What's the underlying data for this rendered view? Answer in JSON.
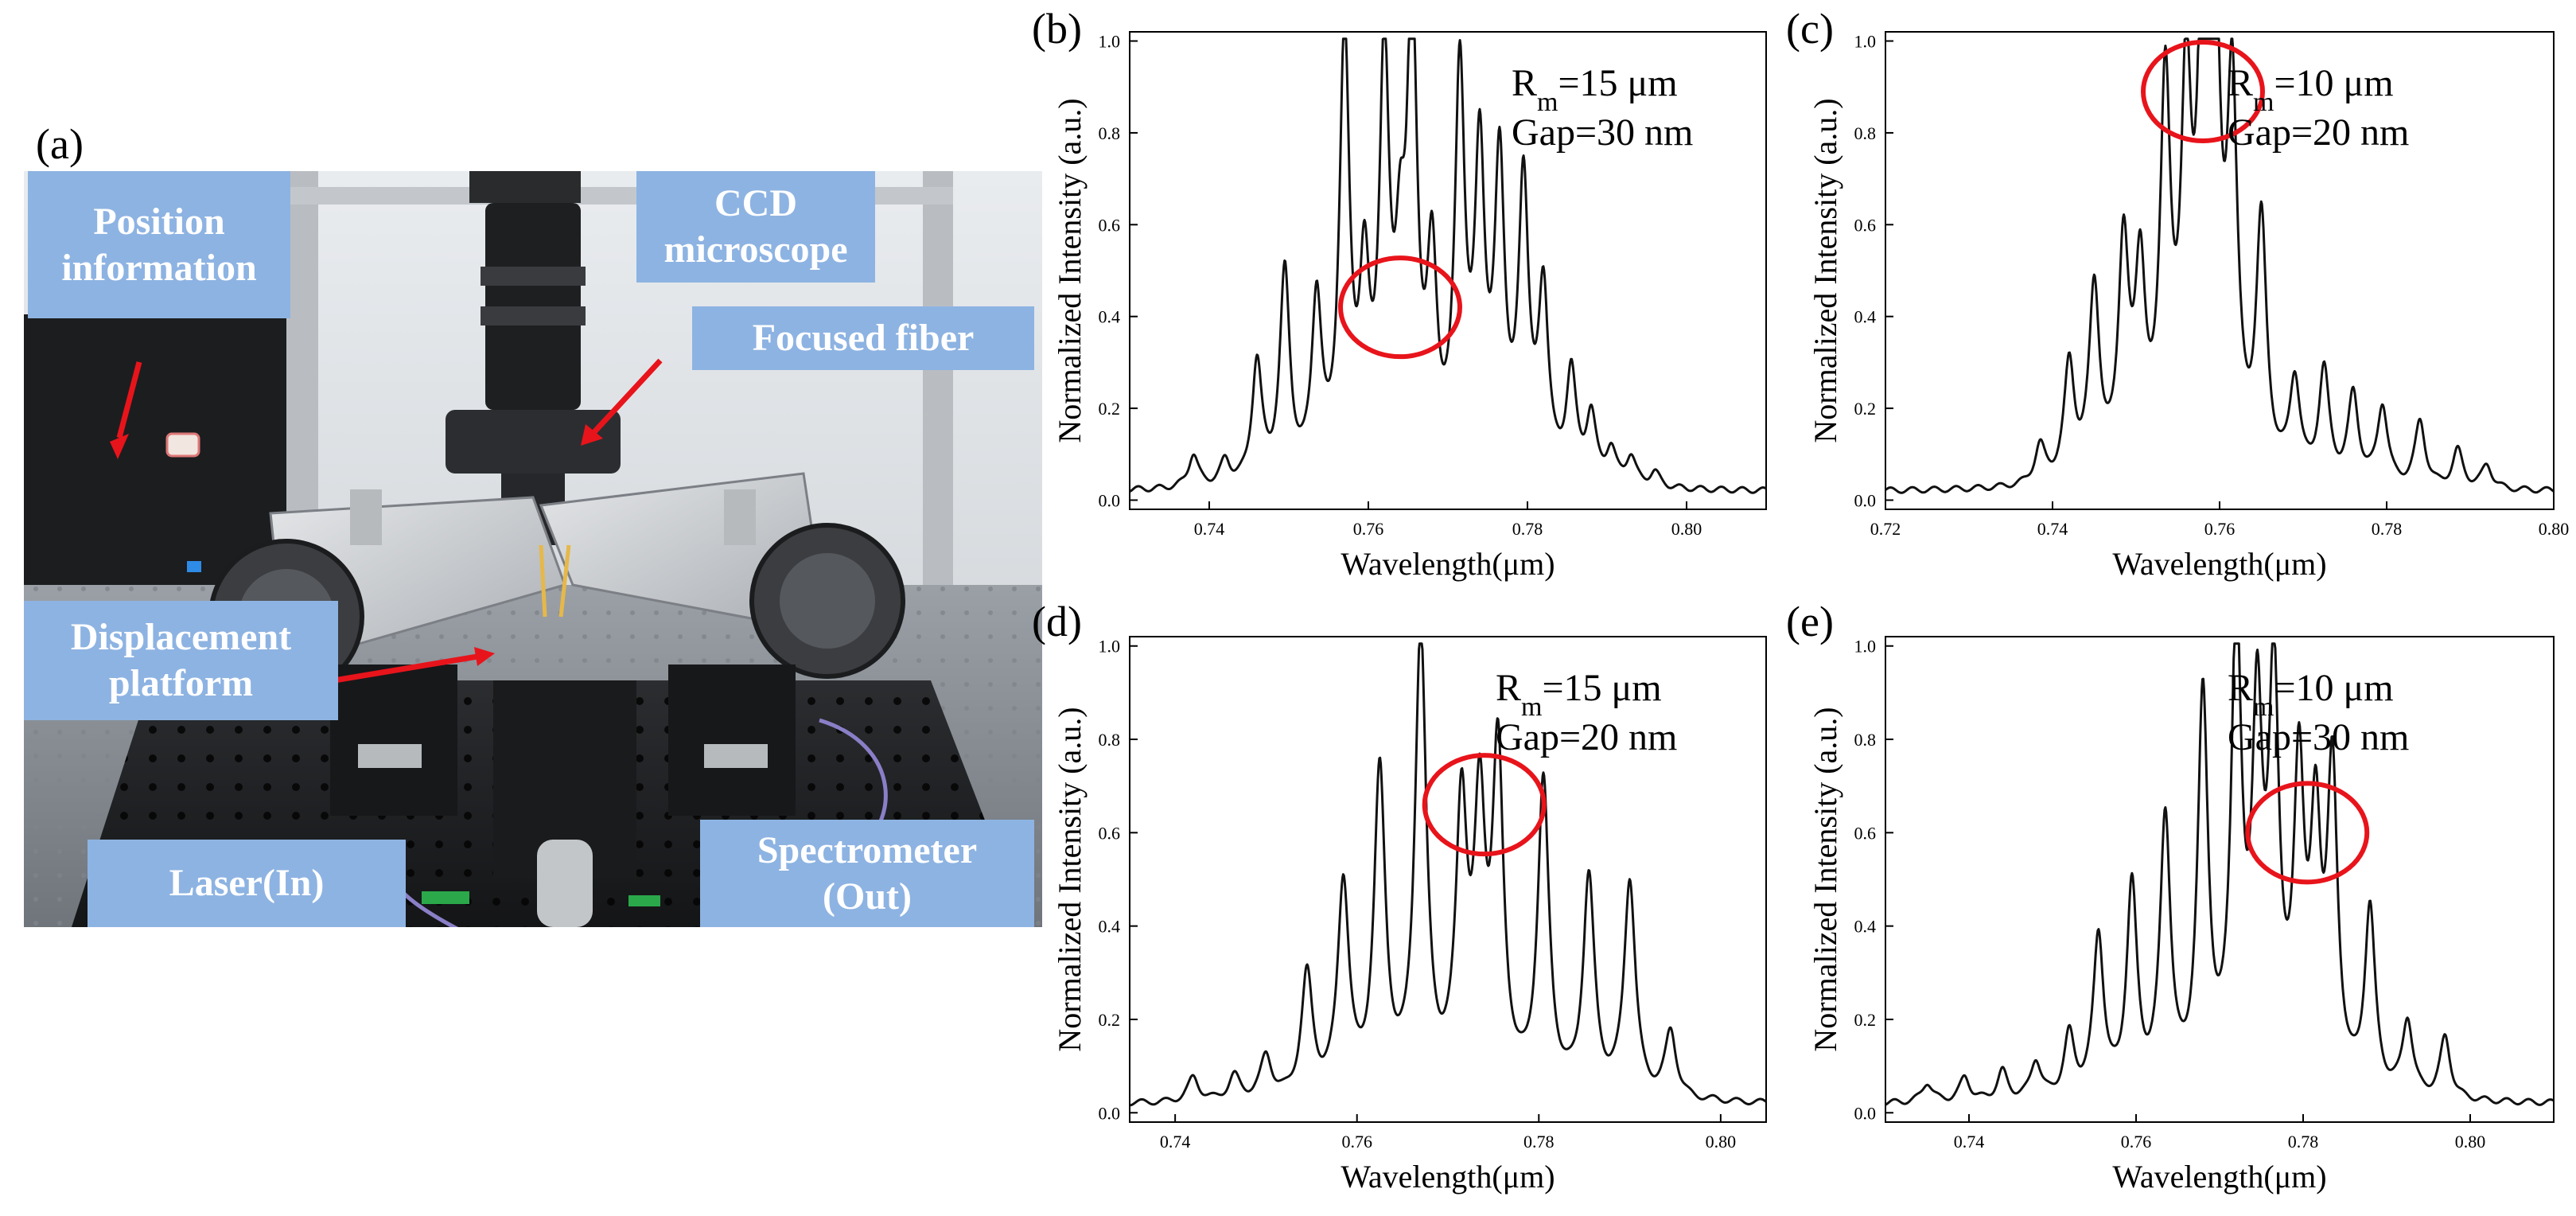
{
  "panel_a": {
    "letter": "(a)",
    "callouts": {
      "position": [
        "Position",
        "information"
      ],
      "ccd": [
        "CCD",
        "microscope"
      ],
      "fiber": [
        "Focused fiber"
      ],
      "displacement": [
        "Displacement",
        "platform"
      ],
      "laser": [
        "Laser(In)"
      ],
      "spectrometer": [
        "Spectrometer",
        "(Out)"
      ]
    }
  },
  "chart_data": [
    {
      "id": "b",
      "letter": "(b)",
      "type": "line",
      "xlabel": "Wavelength(μm)",
      "ylabel": "Normalized Intensity (a.u.)",
      "xlim": [
        0.73,
        0.81
      ],
      "ylim": [
        -0.02,
        1.02
      ],
      "xticks": [
        "0.74",
        "0.76",
        "0.78",
        "0.80"
      ],
      "yticks": [
        "0.0",
        "0.2",
        "0.4",
        "0.6",
        "0.8",
        "1.0"
      ],
      "annotation": {
        "rm_prefix": "R",
        "rm_sub": "m",
        "rm_value": "=15 μm",
        "gap": "Gap=30 nm"
      },
      "highlight": {
        "x": 0.764,
        "y": 0.42
      },
      "peaks": [
        [
          0.738,
          0.09
        ],
        [
          0.742,
          0.07
        ],
        [
          0.746,
          0.28
        ],
        [
          0.7495,
          0.47
        ],
        [
          0.7535,
          0.4
        ],
        [
          0.757,
          0.97
        ],
        [
          0.7595,
          0.41
        ],
        [
          0.762,
          0.89
        ],
        [
          0.764,
          0.38
        ],
        [
          0.7655,
          1.0
        ],
        [
          0.768,
          0.45
        ],
        [
          0.7715,
          0.88
        ],
        [
          0.774,
          0.69
        ],
        [
          0.7765,
          0.68
        ],
        [
          0.7795,
          0.65
        ],
        [
          0.782,
          0.42
        ],
        [
          0.7855,
          0.25
        ],
        [
          0.788,
          0.16
        ],
        [
          0.7905,
          0.09
        ],
        [
          0.793,
          0.08
        ],
        [
          0.796,
          0.05
        ]
      ]
    },
    {
      "id": "c",
      "letter": "(c)",
      "type": "line",
      "xlabel": "Wavelength(μm)",
      "ylabel": "Normalized Intensity (a.u.)",
      "xlim": [
        0.72,
        0.8
      ],
      "ylim": [
        -0.02,
        1.02
      ],
      "xticks": [
        "0.72",
        "0.74",
        "0.76",
        "0.78",
        "0.80"
      ],
      "yticks": [
        "0.0",
        "0.2",
        "0.4",
        "0.6",
        "0.8",
        "1.0"
      ],
      "annotation": {
        "rm_prefix": "R",
        "rm_sub": "m",
        "rm_value": "=10 μm",
        "gap": "Gap=20 nm"
      },
      "highlight": {
        "x": 0.758,
        "y": 0.89
      },
      "peaks": [
        [
          0.7385,
          0.1
        ],
        [
          0.742,
          0.27
        ],
        [
          0.745,
          0.43
        ],
        [
          0.7485,
          0.51
        ],
        [
          0.7505,
          0.44
        ],
        [
          0.7535,
          0.84
        ],
        [
          0.756,
          0.8
        ],
        [
          0.758,
          1.0
        ],
        [
          0.7595,
          0.86
        ],
        [
          0.7615,
          0.81
        ],
        [
          0.765,
          0.56
        ],
        [
          0.769,
          0.23
        ],
        [
          0.7725,
          0.26
        ],
        [
          0.776,
          0.21
        ],
        [
          0.7795,
          0.19
        ],
        [
          0.784,
          0.16
        ],
        [
          0.7885,
          0.1
        ],
        [
          0.792,
          0.07
        ]
      ]
    },
    {
      "id": "d",
      "letter": "(d)",
      "type": "line",
      "xlabel": "Wavelength(μm)",
      "ylabel": "Normalized Intensity (a.u.)",
      "xlim": [
        0.735,
        0.805
      ],
      "ylim": [
        -0.02,
        1.02
      ],
      "xticks": [
        "0.74",
        "0.76",
        "0.78",
        "0.80"
      ],
      "yticks": [
        "0.0",
        "0.2",
        "0.4",
        "0.6",
        "0.8",
        "1.0"
      ],
      "annotation": {
        "rm_prefix": "R",
        "rm_sub": "m",
        "rm_value": "=15 μm",
        "gap": "Gap=20 nm"
      },
      "highlight": {
        "x": 0.774,
        "y": 0.66
      },
      "peaks": [
        [
          0.742,
          0.07
        ],
        [
          0.7465,
          0.07
        ],
        [
          0.75,
          0.11
        ],
        [
          0.7545,
          0.28
        ],
        [
          0.7585,
          0.47
        ],
        [
          0.7625,
          0.7
        ],
        [
          0.767,
          1.0
        ],
        [
          0.7715,
          0.61
        ],
        [
          0.7735,
          0.58
        ],
        [
          0.7755,
          0.72
        ],
        [
          0.7805,
          0.68
        ],
        [
          0.7855,
          0.48
        ],
        [
          0.79,
          0.48
        ],
        [
          0.7945,
          0.16
        ],
        [
          0.7995,
          0.02
        ]
      ]
    },
    {
      "id": "e",
      "letter": "(e)",
      "type": "line",
      "xlabel": "Wavelength(μm)",
      "ylabel": "Normalized Intensity (a.u.)",
      "xlim": [
        0.73,
        0.81
      ],
      "ylim": [
        -0.02,
        1.02
      ],
      "xticks": [
        "0.74",
        "0.76",
        "0.78",
        "0.80"
      ],
      "yticks": [
        "0.0",
        "0.2",
        "0.4",
        "0.6",
        "0.8",
        "1.0"
      ],
      "annotation": {
        "rm_prefix": "R",
        "rm_sub": "m",
        "rm_value": "=10 μm",
        "gap": "Gap=30 nm"
      },
      "highlight": {
        "x": 0.7805,
        "y": 0.6
      },
      "peaks": [
        [
          0.735,
          0.06
        ],
        [
          0.7395,
          0.07
        ],
        [
          0.744,
          0.08
        ],
        [
          0.748,
          0.1
        ],
        [
          0.752,
          0.15
        ],
        [
          0.7555,
          0.36
        ],
        [
          0.7595,
          0.46
        ],
        [
          0.7635,
          0.6
        ],
        [
          0.768,
          0.85
        ],
        [
          0.772,
          1.0
        ],
        [
          0.7745,
          0.77
        ],
        [
          0.7765,
          0.86
        ],
        [
          0.7795,
          0.67
        ],
        [
          0.7815,
          0.54
        ],
        [
          0.7835,
          0.68
        ],
        [
          0.788,
          0.41
        ],
        [
          0.7925,
          0.18
        ],
        [
          0.797,
          0.15
        ]
      ]
    }
  ],
  "colors": {
    "callout_bg": "#8db3e2",
    "highlight": "#e8141b",
    "arrow": "#e8141b",
    "line": "#111111"
  }
}
